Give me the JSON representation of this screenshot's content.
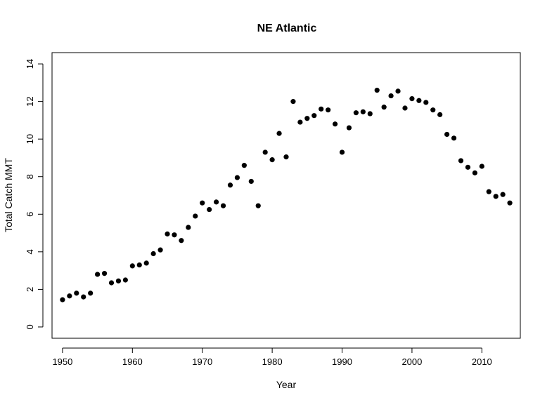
{
  "chart_data": {
    "type": "scatter",
    "title": "NE Atlantic",
    "xlabel": "Year",
    "ylabel": "Total Catch MMT",
    "xlim": [
      1948.5,
      2015.5
    ],
    "ylim": [
      -0.6,
      14.6
    ],
    "xticks": [
      1950,
      1960,
      1970,
      1980,
      1990,
      2000,
      2010
    ],
    "yticks": [
      0,
      2,
      4,
      6,
      8,
      10,
      12,
      14
    ],
    "grid": false,
    "marker_color": "#000000",
    "points": [
      {
        "x": 1950,
        "y": 1.45
      },
      {
        "x": 1951,
        "y": 1.65
      },
      {
        "x": 1952,
        "y": 1.8
      },
      {
        "x": 1953,
        "y": 1.6
      },
      {
        "x": 1954,
        "y": 1.8
      },
      {
        "x": 1955,
        "y": 2.8
      },
      {
        "x": 1956,
        "y": 2.85
      },
      {
        "x": 1957,
        "y": 2.35
      },
      {
        "x": 1958,
        "y": 2.45
      },
      {
        "x": 1959,
        "y": 2.5
      },
      {
        "x": 1960,
        "y": 3.25
      },
      {
        "x": 1961,
        "y": 3.3
      },
      {
        "x": 1962,
        "y": 3.4
      },
      {
        "x": 1963,
        "y": 3.9
      },
      {
        "x": 1964,
        "y": 4.1
      },
      {
        "x": 1965,
        "y": 4.95
      },
      {
        "x": 1966,
        "y": 4.9
      },
      {
        "x": 1967,
        "y": 4.6
      },
      {
        "x": 1968,
        "y": 5.3
      },
      {
        "x": 1969,
        "y": 5.9
      },
      {
        "x": 1970,
        "y": 6.6
      },
      {
        "x": 1971,
        "y": 6.25
      },
      {
        "x": 1972,
        "y": 6.65
      },
      {
        "x": 1973,
        "y": 6.45
      },
      {
        "x": 1974,
        "y": 7.55
      },
      {
        "x": 1975,
        "y": 7.95
      },
      {
        "x": 1976,
        "y": 8.6
      },
      {
        "x": 1977,
        "y": 7.75
      },
      {
        "x": 1978,
        "y": 6.45
      },
      {
        "x": 1979,
        "y": 9.3
      },
      {
        "x": 1980,
        "y": 8.9
      },
      {
        "x": 1981,
        "y": 10.3
      },
      {
        "x": 1982,
        "y": 9.05
      },
      {
        "x": 1983,
        "y": 12.0
      },
      {
        "x": 1984,
        "y": 10.9
      },
      {
        "x": 1985,
        "y": 11.1
      },
      {
        "x": 1986,
        "y": 11.25
      },
      {
        "x": 1987,
        "y": 11.6
      },
      {
        "x": 1988,
        "y": 11.55
      },
      {
        "x": 1989,
        "y": 10.8
      },
      {
        "x": 1990,
        "y": 9.3
      },
      {
        "x": 1991,
        "y": 10.6
      },
      {
        "x": 1992,
        "y": 11.4
      },
      {
        "x": 1993,
        "y": 11.45
      },
      {
        "x": 1994,
        "y": 11.35
      },
      {
        "x": 1995,
        "y": 12.6
      },
      {
        "x": 1996,
        "y": 11.7
      },
      {
        "x": 1997,
        "y": 12.3
      },
      {
        "x": 1998,
        "y": 12.55
      },
      {
        "x": 1999,
        "y": 11.65
      },
      {
        "x": 2000,
        "y": 12.15
      },
      {
        "x": 2001,
        "y": 12.05
      },
      {
        "x": 2002,
        "y": 11.95
      },
      {
        "x": 2003,
        "y": 11.55
      },
      {
        "x": 2004,
        "y": 11.3
      },
      {
        "x": 2005,
        "y": 10.25
      },
      {
        "x": 2006,
        "y": 10.05
      },
      {
        "x": 2007,
        "y": 8.85
      },
      {
        "x": 2008,
        "y": 8.5
      },
      {
        "x": 2009,
        "y": 8.2
      },
      {
        "x": 2010,
        "y": 8.55
      },
      {
        "x": 2011,
        "y": 7.2
      },
      {
        "x": 2012,
        "y": 6.95
      },
      {
        "x": 2013,
        "y": 7.05
      },
      {
        "x": 2014,
        "y": 6.6
      }
    ]
  }
}
